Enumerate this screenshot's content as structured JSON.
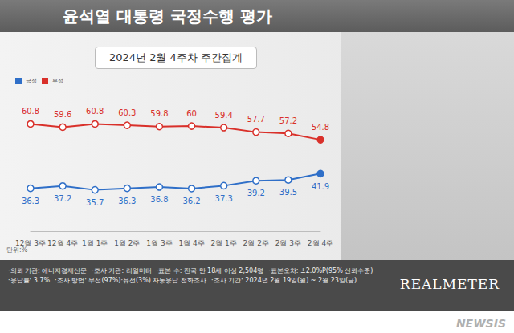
{
  "chart_data": {
    "type": "line",
    "title": "윤석열 대통령 국정수행 평가",
    "subtitle": "2024년 2월 4주차 주간집계",
    "categories": [
      "12월 3주",
      "12월 4주",
      "1월 1주",
      "1월 2주",
      "1월 3주",
      "1월 4주",
      "2월 1주",
      "2월 2주",
      "2월 3주",
      "2월 4주"
    ],
    "series": [
      {
        "name": "긍정",
        "color": "#2f6fc8",
        "values": [
          36.3,
          37.2,
          35.7,
          36.3,
          36.8,
          36.2,
          37.3,
          39.2,
          39.5,
          41.9
        ]
      },
      {
        "name": "부정",
        "color": "#d9302a",
        "values": [
          60.8,
          59.6,
          60.8,
          60.3,
          59.8,
          60.0,
          59.4,
          57.7,
          57.2,
          54.8
        ]
      }
    ],
    "ylim": [
      20,
      75
    ],
    "marker": "circle",
    "data_labels": true,
    "tick_labels": "x",
    "grid": false,
    "legend": "top-left",
    "annotations": [
      {
        "text": "단위:%"
      }
    ]
  },
  "footer": {
    "lines": [
      "·의뢰 기관: 에너지경제신문",
      "·조사 기관: 리얼미터",
      "·표본 수: 전국 만 18세 이상 2,504명",
      "·표본오차: ±2.0%P(95% 신뢰수준)",
      "·응답률: 3.7%",
      "·조사 방법: 무선(97%)·유선(3%) 자동응답 전화조사",
      "·조사 기간: 2024년 2월 19일(월) ~ 2월 23일(금)"
    ]
  },
  "logo": "REALMETER",
  "watermark": "NEWSIS"
}
